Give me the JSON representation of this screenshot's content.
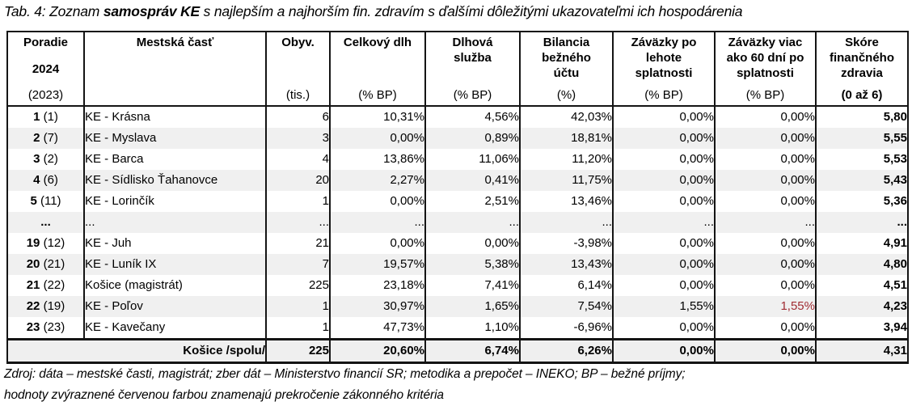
{
  "title": {
    "prefix": "Tab. 4: Zoznam ",
    "bold": "samospráv KE",
    "suffix": " s najlepším a najhorším fin. zdravím s ďalšími dôležitými ukazovateľmi ich hospodárenia"
  },
  "table": {
    "columns": [
      {
        "key": "rank",
        "label": "Poradie",
        "label2": "2024",
        "unit": "(2023)"
      },
      {
        "key": "district",
        "label": "Mestská časť",
        "unit": ""
      },
      {
        "key": "population",
        "label": "Obyv.",
        "unit": "(tis.)"
      },
      {
        "key": "total-debt",
        "label": "Celkový dlh",
        "unit": "(% BP)"
      },
      {
        "key": "debt-service",
        "label": "Dlhová služba",
        "unit": "(% BP)"
      },
      {
        "key": "balance",
        "label": "Bilancia bežného účtu",
        "unit": "(%)"
      },
      {
        "key": "overdue",
        "label": "Záväzky po lehote splatnosti",
        "unit": "(% BP)"
      },
      {
        "key": "overdue60",
        "label": "Záväzky viac ako 60 dní po splatnosti",
        "unit": "(% BP)"
      },
      {
        "key": "score",
        "label": "Skóre finančného zdravia",
        "unit": "(0 až 6)",
        "unit_bold": true
      }
    ],
    "rows": [
      {
        "rank": "1",
        "prev": "(1)",
        "name": "KE - Krásna",
        "obyv": "6",
        "dlh": "10,31%",
        "sluzba": "4,56%",
        "bilancia": "42,03%",
        "zav_po": "0,00%",
        "zav60": "0,00%",
        "skore": "5,80",
        "shaded": false,
        "red": false
      },
      {
        "rank": "2",
        "prev": "(7)",
        "name": "KE - Myslava",
        "obyv": "3",
        "dlh": "0,00%",
        "sluzba": "0,89%",
        "bilancia": "18,81%",
        "zav_po": "0,00%",
        "zav60": "0,00%",
        "skore": "5,55",
        "shaded": true,
        "red": false
      },
      {
        "rank": "3",
        "prev": "(2)",
        "name": "KE - Barca",
        "obyv": "4",
        "dlh": "13,86%",
        "sluzba": "11,06%",
        "bilancia": "11,20%",
        "zav_po": "0,00%",
        "zav60": "0,00%",
        "skore": "5,53",
        "shaded": false,
        "red": false
      },
      {
        "rank": "4",
        "prev": "(6)",
        "name": "KE - Sídlisko Ťahanovce",
        "obyv": "20",
        "dlh": "2,27%",
        "sluzba": "0,41%",
        "bilancia": "11,75%",
        "zav_po": "0,00%",
        "zav60": "0,00%",
        "skore": "5,43",
        "shaded": true,
        "red": false
      },
      {
        "rank": "5",
        "prev": "(11)",
        "name": "KE - Lorinčík",
        "obyv": "1",
        "dlh": "0,00%",
        "sluzba": "2,51%",
        "bilancia": "13,46%",
        "zav_po": "0,00%",
        "zav60": "0,00%",
        "skore": "5,36",
        "shaded": false,
        "red": false
      },
      {
        "rank": "...",
        "prev": "",
        "name": "...",
        "obyv": "...",
        "dlh": "...",
        "sluzba": "...",
        "bilancia": "...",
        "zav_po": "...",
        "zav60": "...",
        "skore": "...",
        "shaded": true,
        "red": false
      },
      {
        "rank": "19",
        "prev": "(12)",
        "name": "KE - Juh",
        "obyv": "21",
        "dlh": "0,00%",
        "sluzba": "0,00%",
        "bilancia": "-3,98%",
        "zav_po": "0,00%",
        "zav60": "0,00%",
        "skore": "4,91",
        "shaded": false,
        "red": false
      },
      {
        "rank": "20",
        "prev": "(21)",
        "name": "KE - Luník IX",
        "obyv": "7",
        "dlh": "19,57%",
        "sluzba": "5,38%",
        "bilancia": "13,43%",
        "zav_po": "0,00%",
        "zav60": "0,00%",
        "skore": "4,80",
        "shaded": true,
        "red": false
      },
      {
        "rank": "21",
        "prev": "(22)",
        "name": "Košice (magistrát)",
        "obyv": "225",
        "dlh": "23,18%",
        "sluzba": "7,41%",
        "bilancia": "6,14%",
        "zav_po": "0,00%",
        "zav60": "0,00%",
        "skore": "4,51",
        "shaded": false,
        "red": false
      },
      {
        "rank": "22",
        "prev": "(19)",
        "name": "KE - Poľov",
        "obyv": "1",
        "dlh": "30,97%",
        "sluzba": "1,65%",
        "bilancia": "7,54%",
        "zav_po": "1,55%",
        "zav60": "1,55%",
        "skore": "4,23",
        "shaded": true,
        "red": true
      },
      {
        "rank": "23",
        "prev": "(23)",
        "name": "KE - Kavečany",
        "obyv": "1",
        "dlh": "47,73%",
        "sluzba": "1,10%",
        "bilancia": "-6,96%",
        "zav_po": "0,00%",
        "zav60": "0,00%",
        "skore": "3,94",
        "shaded": false,
        "red": false
      }
    ],
    "total": {
      "label": "Košice /spolu/",
      "obyv": "225",
      "dlh": "20,60%",
      "sluzba": "6,74%",
      "bilancia": "6,26%",
      "zav_po": "0,00%",
      "zav60": "0,00%",
      "skore": "4,31"
    }
  },
  "footer": {
    "line1": "Zdroj: dáta – mestské časti, magistrát; zber dát – Ministerstvo financií SR; metodika a prepočet – INEKO; BP – bežné príjmy;",
    "line2": "hodnoty zvýraznené červenou farbou znamenajú prekročenie zákonného kritéria"
  },
  "colors": {
    "red_highlight": "#a02c33",
    "stripe": "#f0f0f0"
  }
}
